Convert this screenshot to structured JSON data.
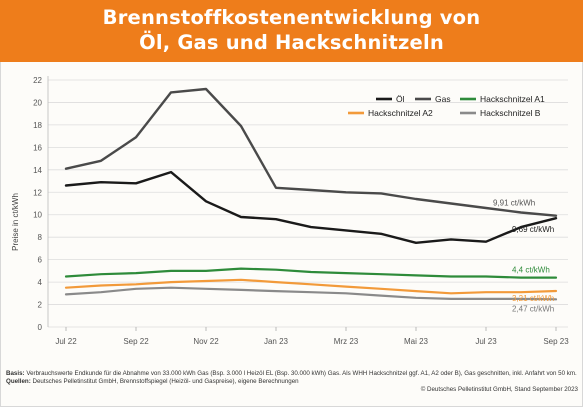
{
  "header": {
    "title_line1": "Brennstoffkostenentwicklung von",
    "title_line2": "Öl, Gas und Hackschnitzeln"
  },
  "colors": {
    "header_bg": "#ee7d1b",
    "oil": "#1a1a1a",
    "gas": "#4a4a4a",
    "hs_a1": "#2e8b3a",
    "hs_a2": "#f29a3a",
    "hs_b": "#8a8a8a"
  },
  "chart_data": {
    "type": "line",
    "ylabel": "Preise in ct/kWh",
    "ylim": [
      0,
      22
    ],
    "yticks": [
      0,
      2,
      4,
      6,
      8,
      10,
      12,
      14,
      16,
      18,
      20,
      22
    ],
    "x_ticks": [
      "Jul 22",
      "Sep 22",
      "Nov 22",
      "Jan 23",
      "Mrz 23",
      "Mai 23",
      "Jul 23",
      "Sep 23"
    ],
    "x_tick_index": [
      0,
      2,
      4,
      6,
      8,
      10,
      12,
      14
    ],
    "num_points": 15,
    "grid": true,
    "legend_position": "top-right",
    "series": [
      {
        "name": "Öl",
        "key": "oil",
        "values": [
          12.6,
          12.9,
          12.8,
          13.8,
          11.2,
          9.8,
          9.6,
          8.9,
          8.6,
          8.3,
          7.5,
          7.8,
          7.6,
          8.9,
          9.69
        ]
      },
      {
        "name": "Gas",
        "key": "gas",
        "values": [
          14.1,
          14.8,
          16.9,
          20.9,
          21.2,
          17.9,
          12.4,
          12.2,
          12.0,
          11.9,
          11.4,
          11.0,
          10.6,
          10.2,
          9.91
        ]
      },
      {
        "name": "Hackschnitzel A1",
        "key": "hs_a1",
        "values": [
          4.5,
          4.7,
          4.8,
          5.0,
          5.0,
          5.2,
          5.1,
          4.9,
          4.8,
          4.7,
          4.6,
          4.5,
          4.5,
          4.4,
          4.4
        ]
      },
      {
        "name": "Hackschnitzel A2",
        "key": "hs_a2",
        "values": [
          3.5,
          3.7,
          3.8,
          4.0,
          4.1,
          4.2,
          4.0,
          3.8,
          3.6,
          3.4,
          3.2,
          3.0,
          3.1,
          3.1,
          3.21
        ]
      },
      {
        "name": "Hackschnitzel B",
        "key": "hs_b",
        "values": [
          2.9,
          3.1,
          3.4,
          3.5,
          3.4,
          3.3,
          3.2,
          3.1,
          3.0,
          2.8,
          2.6,
          2.5,
          2.5,
          2.5,
          2.47
        ]
      }
    ],
    "annotations": [
      {
        "series": "gas",
        "text": "9,91 ct/kWh"
      },
      {
        "series": "oil",
        "text": "9,69 ct/kWh"
      },
      {
        "series": "hs_a1",
        "text": "4,4 ct/kWh"
      },
      {
        "series": "hs_a2",
        "text": "3,21 ct/kWh"
      },
      {
        "series": "hs_b",
        "text": "2,47 ct/kWh"
      }
    ]
  },
  "footer": {
    "basis_label": "Basis:",
    "basis_text": "Verbrauchswerte Endkunde für die Abnahme von 33.000 kWh Gas (Bsp. 3.000 l Heizöl EL (Bsp. 30.000 kWh) Gas. Als WHH Hackschnitzel ggf. A1, A2 oder B), Gas geschnitten, inkl. Anfahrt von 50 km.",
    "quelle_label": "Quellen:",
    "quelle_text": "Deutsches Pelletinstitut GmbH, Brennstoffspiegel (Heizöl- und Gaspreise), eigene Berechnungen",
    "copyright": "© Deutsches Pelletinstitut GmbH, Stand September 2023"
  }
}
